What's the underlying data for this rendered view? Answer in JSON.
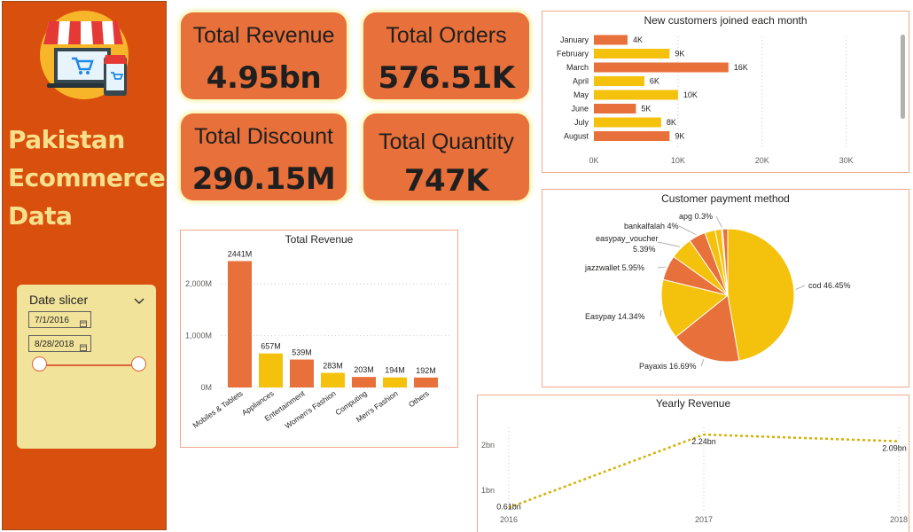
{
  "dashboard": {
    "brand_lines": [
      "Pakistan",
      "Ecommerce",
      "Data"
    ]
  },
  "slicer": {
    "title": "Date slicer",
    "start_date": "7/1/2016",
    "end_date": "8/28/2018"
  },
  "kpis": [
    {
      "label": "Total Revenue",
      "value": "4.95bn"
    },
    {
      "label": "Total Orders",
      "value": "576.51K"
    },
    {
      "label": "Total Discount",
      "value": "290.15M"
    },
    {
      "label": "Total Quantity",
      "value": "747K"
    }
  ],
  "colors": {
    "orange": "#e8703a",
    "yellow": "#f4c20d",
    "sidebar": "#d94f0d",
    "brand_text": "#f7e08b",
    "slicer_bg": "#f2e39b",
    "line": "#d4b106"
  },
  "chart_data": [
    {
      "id": "new-customers",
      "type": "bar",
      "orientation": "horizontal",
      "title": "New customers joined each month",
      "categories": [
        "January",
        "February",
        "March",
        "April",
        "May",
        "June",
        "July",
        "August"
      ],
      "values": [
        4000,
        9000,
        16000,
        6000,
        10000,
        5000,
        8000,
        9000
      ],
      "data_labels": [
        "4K",
        "9K",
        "16K",
        "6K",
        "10K",
        "5K",
        "8K",
        "9K"
      ],
      "bar_colors": [
        "#e8703a",
        "#f4c20d",
        "#e8703a",
        "#f4c20d",
        "#f4c20d",
        "#e8703a",
        "#f4c20d",
        "#e8703a"
      ],
      "xlim": [
        0,
        35000
      ],
      "x_ticks": [
        0,
        10000,
        20000,
        30000
      ],
      "x_tick_labels": [
        "0K",
        "10K",
        "20K",
        "30K"
      ],
      "grid": true
    },
    {
      "id": "payment-method",
      "type": "pie",
      "title": "Customer payment method",
      "slices": [
        {
          "label": "cod",
          "value": 46.45,
          "text": "cod 46.45%",
          "color": "#f4c20d"
        },
        {
          "label": "Payaxis",
          "value": 16.69,
          "text": "Payaxis 16.69%",
          "color": "#e8703a"
        },
        {
          "label": "Easypay",
          "value": 14.34,
          "text": "Easypay 14.34%",
          "color": "#f4c20d"
        },
        {
          "label": "jazzwallet",
          "value": 5.95,
          "text": "jazzwallet 5.95%",
          "color": "#e8703a"
        },
        {
          "label": "easypay_voucher",
          "value": 5.39,
          "text": "easypay_voucher 5.39%",
          "color": "#f4c20d"
        },
        {
          "label": "bankalfalah",
          "value": 4.0,
          "text": "bankalfalah 4%",
          "color": "#e8703a"
        },
        {
          "label": "other-1",
          "value": 2.5,
          "text": "",
          "color": "#f4c20d"
        },
        {
          "label": "other-2",
          "value": 1.5,
          "text": "",
          "color": "#f4c20d"
        },
        {
          "label": "apg",
          "value": 0.3,
          "text": "apg 0.3%",
          "color": "#e8703a"
        },
        {
          "label": "other-3",
          "value": 1.2,
          "text": "",
          "color": "#e8703a"
        }
      ]
    },
    {
      "id": "total-revenue",
      "type": "bar",
      "title": "Total Revenue",
      "categories": [
        "Mobiles & Tablets",
        "Appliances",
        "Entertainment",
        "Women's Fashion",
        "Computing",
        "Men's Fashion",
        "Others"
      ],
      "values": [
        2441,
        657,
        539,
        283,
        203,
        194,
        192
      ],
      "data_labels": [
        "2441M",
        "657M",
        "539M",
        "283M",
        "203M",
        "194M",
        "192M"
      ],
      "bar_colors": [
        "#e8703a",
        "#f4c20d",
        "#e8703a",
        "#f4c20d",
        "#e8703a",
        "#f4c20d",
        "#e8703a"
      ],
      "ylim": [
        0,
        2500
      ],
      "y_ticks": [
        0,
        1000,
        2000
      ],
      "y_tick_labels": [
        "0M",
        "1,000M",
        "2,000M"
      ],
      "grid": true
    },
    {
      "id": "yearly-revenue",
      "type": "line",
      "title": "Yearly Revenue",
      "x": [
        "2016",
        "2017",
        "2018"
      ],
      "values": [
        0.61,
        2.24,
        2.09
      ],
      "data_labels": [
        "0.61bn",
        "2.24bn",
        "2.09bn"
      ],
      "ylim": [
        0.6,
        2.4
      ],
      "y_ticks": [
        1,
        2
      ],
      "y_tick_labels": [
        "1bn",
        "2bn"
      ],
      "line_style": "dotted"
    }
  ]
}
